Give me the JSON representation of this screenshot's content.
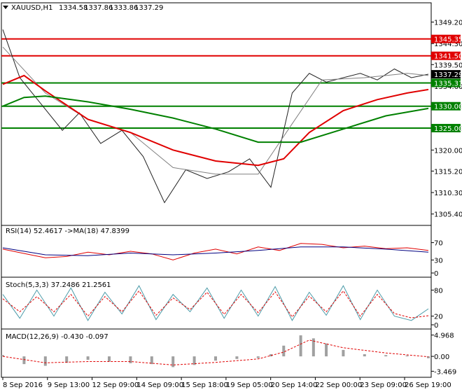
{
  "chart_data": [
    {
      "type": "candlestick",
      "panel": "price",
      "title": "XAUUSD,H1",
      "ohlc": [
        "1334.58",
        "1337.86",
        "1333.86",
        "1337.29"
      ],
      "ylim": [
        1304.4,
        1352.0
      ],
      "y_ticks": [
        1349.2,
        1344.3,
        1339.5,
        1334.6,
        1330.0,
        1325.0,
        1320.0,
        1315.2,
        1310.3,
        1305.4
      ],
      "y_tick_labels": [
        "1349.20",
        "1344.30",
        "1339.50",
        "1334.60",
        "1330.00",
        "1325.00",
        "1320.00",
        "1315.20",
        "1310.30",
        "1305.40"
      ],
      "x_tick_labels": [
        "8 Sep 2016",
        "9 Sep 13:00",
        "12 Sep 09:00",
        "14 Sep 09:00",
        "15 Sep 18:00",
        "19 Sep 05:00",
        "20 Sep 14:00",
        "22 Sep 00:00",
        "23 Sep 09:00",
        "26 Sep 19:00"
      ],
      "series": [
        {
          "name": "price",
          "x": [
            0,
            0.04,
            0.09,
            0.14,
            0.18,
            0.23,
            0.28,
            0.33,
            0.38,
            0.43,
            0.48,
            0.53,
            0.58,
            0.63,
            0.68,
            0.72,
            0.76,
            0.8,
            0.84,
            0.88,
            0.92,
            0.96,
            1.0
          ],
          "values": [
            1347.5,
            1336.5,
            1330.5,
            1324.5,
            1328.5,
            1321.5,
            1324.5,
            1318.5,
            1308.0,
            1315.5,
            1313.5,
            1315.0,
            1318.0,
            1311.5,
            1333.0,
            1337.5,
            1335.5,
            1336.5,
            1337.5,
            1336.0,
            1338.5,
            1336.5,
            1337.3
          ]
        },
        {
          "name": "sma-short",
          "x": [
            0,
            0.1,
            0.2,
            0.3,
            0.4,
            0.5,
            0.6,
            0.68,
            0.75,
            0.85,
            0.95,
            1.0
          ],
          "values": [
            1343.5,
            1333.0,
            1327.0,
            1324.0,
            1316.0,
            1314.5,
            1314.5,
            1326.0,
            1336.0,
            1336.5,
            1337.5,
            1337.0
          ]
        },
        {
          "name": "sma-mid",
          "x": [
            0,
            0.05,
            0.1,
            0.2,
            0.3,
            0.4,
            0.5,
            0.6,
            0.66,
            0.72,
            0.8,
            0.88,
            0.95,
            1.0
          ],
          "values": [
            1335.0,
            1337.0,
            1333.5,
            1327.0,
            1324.0,
            1320.0,
            1317.5,
            1316.5,
            1318.0,
            1324.0,
            1329.0,
            1331.5,
            1333.0,
            1333.8
          ]
        },
        {
          "name": "sma-long",
          "x": [
            0,
            0.05,
            0.1,
            0.2,
            0.3,
            0.4,
            0.5,
            0.6,
            0.7,
            0.8,
            0.9,
            1.0
          ],
          "values": [
            1330.0,
            1332.0,
            1332.3,
            1331.0,
            1329.3,
            1327.3,
            1324.8,
            1321.8,
            1321.8,
            1324.8,
            1327.8,
            1329.5
          ]
        }
      ],
      "levels": [
        {
          "label": "1345.35",
          "value": 1345.35,
          "color": "#e00000"
        },
        {
          "label": "1341.50",
          "value": 1341.5,
          "color": "#e00000"
        },
        {
          "label": "1335.31",
          "value": 1335.31,
          "color": "#008000"
        },
        {
          "label": "1330.00",
          "value": 1330.0,
          "color": "#008000"
        },
        {
          "label": "1325.00",
          "value": 1325.0,
          "color": "#008000"
        }
      ],
      "current_price": {
        "label": "1337.29",
        "value": 1337.29
      }
    },
    {
      "type": "line",
      "panel": "rsi",
      "title": "RSI(14) 52.4617 ->MA(18) 47.8399",
      "ylim": [
        0,
        100
      ],
      "y_ticks": [
        70,
        30,
        0
      ],
      "y_tick_labels": [
        "70",
        "30",
        "0"
      ],
      "series": [
        {
          "name": "RSI(14)",
          "color": "#e00000",
          "x": [
            0,
            0.05,
            0.1,
            0.15,
            0.2,
            0.25,
            0.3,
            0.35,
            0.4,
            0.45,
            0.5,
            0.55,
            0.6,
            0.65,
            0.7,
            0.75,
            0.8,
            0.85,
            0.9,
            0.95,
            1.0
          ],
          "values": [
            55,
            45,
            35,
            38,
            48,
            42,
            50,
            44,
            30,
            46,
            55,
            44,
            60,
            52,
            68,
            66,
            58,
            62,
            56,
            58,
            52
          ]
        },
        {
          "name": "MA(18)",
          "color": "#000080",
          "x": [
            0,
            0.1,
            0.2,
            0.3,
            0.4,
            0.5,
            0.6,
            0.7,
            0.8,
            0.9,
            1.0
          ],
          "values": [
            58,
            42,
            40,
            46,
            42,
            46,
            52,
            60,
            60,
            55,
            48
          ]
        }
      ]
    },
    {
      "type": "line",
      "panel": "stoch",
      "title": "Stoch(5,3,3) 37.2486 21.2561",
      "ylim": [
        0,
        100
      ],
      "y_ticks": [
        80,
        20,
        0
      ],
      "y_tick_labels": [
        "80",
        "20",
        "0"
      ],
      "series": [
        {
          "name": "%K",
          "color": "#4a9aa8",
          "x": [
            0,
            0.04,
            0.08,
            0.12,
            0.16,
            0.2,
            0.24,
            0.28,
            0.32,
            0.36,
            0.4,
            0.44,
            0.48,
            0.52,
            0.56,
            0.6,
            0.64,
            0.68,
            0.72,
            0.76,
            0.8,
            0.84,
            0.88,
            0.92,
            0.96,
            1.0
          ],
          "values": [
            70,
            15,
            80,
            20,
            85,
            10,
            75,
            25,
            90,
            12,
            70,
            30,
            85,
            15,
            80,
            20,
            88,
            10,
            75,
            22,
            90,
            12,
            80,
            20,
            10,
            37
          ]
        },
        {
          "name": "%D",
          "color": "#e00000",
          "x": [
            0,
            0.04,
            0.08,
            0.12,
            0.16,
            0.2,
            0.24,
            0.28,
            0.32,
            0.36,
            0.4,
            0.44,
            0.48,
            0.52,
            0.56,
            0.6,
            0.64,
            0.68,
            0.72,
            0.76,
            0.8,
            0.84,
            0.88,
            0.92,
            0.96,
            1.0
          ],
          "values": [
            60,
            30,
            65,
            30,
            70,
            20,
            65,
            30,
            78,
            22,
            62,
            35,
            75,
            24,
            70,
            28,
            76,
            18,
            66,
            30,
            78,
            20,
            70,
            26,
            16,
            21
          ]
        }
      ]
    },
    {
      "type": "bar",
      "panel": "macd",
      "title": "MACD(12,26,9) -0.430 -0.097",
      "ylim": [
        -3.9,
        5.4
      ],
      "y_ticks": [
        4.968,
        0.0,
        -3.469
      ],
      "y_tick_labels": [
        "4.968",
        "0.00",
        "-3.469"
      ],
      "series": [
        {
          "name": "histogram",
          "color": "#a0a0a0",
          "x": [
            0,
            0.05,
            0.1,
            0.15,
            0.2,
            0.25,
            0.3,
            0.35,
            0.4,
            0.45,
            0.5,
            0.55,
            0.6,
            0.63,
            0.66,
            0.7,
            0.73,
            0.76,
            0.8,
            0.85,
            0.9,
            0.95,
            1.0
          ],
          "values": [
            0.3,
            -1.8,
            -2.2,
            -1.5,
            -0.8,
            -1.2,
            -1.6,
            -1.8,
            -2.5,
            -2.0,
            -1.0,
            -0.6,
            -0.4,
            0.5,
            2.5,
            4.9,
            4.2,
            3.0,
            1.5,
            0.5,
            0.3,
            0.2,
            -0.43
          ]
        },
        {
          "name": "signal",
          "color": "#e00000",
          "x": [
            0,
            0.1,
            0.2,
            0.3,
            0.4,
            0.5,
            0.6,
            0.66,
            0.72,
            0.8,
            0.9,
            1.0
          ],
          "values": [
            0,
            -1.5,
            -1.2,
            -1.2,
            -2.0,
            -1.4,
            -0.6,
            1.0,
            3.8,
            2.0,
            0.8,
            -0.1
          ]
        }
      ]
    }
  ]
}
